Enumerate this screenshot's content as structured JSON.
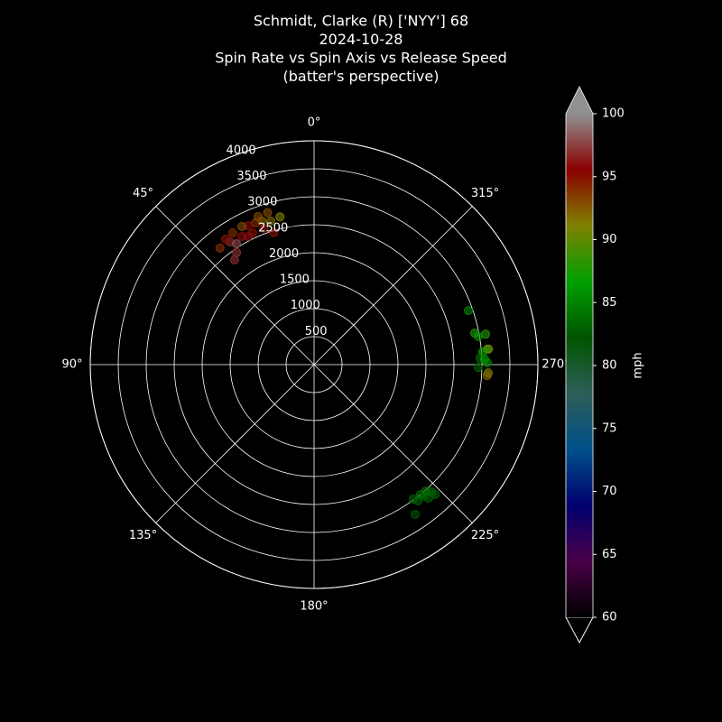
{
  "chart_data": {
    "type": "polar-scatter",
    "title_lines": [
      "Schmidt, Clarke (R) ['NYY'] 68",
      "2024-10-28",
      "Spin Rate vs Spin Axis vs Release Speed",
      "(batter's perspective)"
    ],
    "theta": [
      17,
      13,
      17,
      20,
      22.5,
      25.4,
      27.6,
      29.4,
      31.7,
      34.4,
      35.2,
      38.9,
      32.7,
      37.2,
      34.7,
      25,
      16.8,
      20.3,
      27.2,
      20.7,
      289.3,
      281.1,
      279.7,
      280.1,
      275.1,
      275.1,
      274.3,
      272.2,
      270.6,
      269,
      267.3,
      266.4,
      271.8,
      219.9,
      214,
      222.7,
      220.6,
      217.3,
      219.3,
      223,
      221.5,
      216.4
    ],
    "r": [
      2840,
      2710,
      2465,
      2730,
      2740,
      2745,
      2785,
      2630,
      2767,
      2656,
      2743,
      2677,
      2568,
      2350,
      2434,
      2597,
      2678,
      2597,
      2576,
      2828,
      2923,
      2925,
      2978,
      3113,
      3108,
      3130,
      3025,
      2969,
      3097,
      2935,
      3116,
      3100,
      3049,
      3067,
      3230,
      3093,
      3146,
      3062,
      3002,
      3172,
      3017,
      2987
    ],
    "speed": [
      93,
      91,
      95,
      92,
      94,
      96,
      93,
      96,
      94,
      97,
      95,
      94,
      98,
      97,
      97,
      95,
      92,
      95,
      96,
      93,
      85,
      88,
      86,
      88,
      89,
      90,
      87,
      84,
      85,
      83,
      91,
      92,
      86,
      83,
      82,
      84,
      83,
      83,
      84,
      83,
      84,
      83
    ],
    "rlim": [
      0,
      4000
    ],
    "rticks": [
      500,
      1000,
      1500,
      2000,
      2500,
      3000,
      3500,
      4000
    ],
    "thetaticks": [
      {
        "value": 0,
        "label": "0°"
      },
      {
        "value": 45,
        "label": "45°"
      },
      {
        "value": 90,
        "label": "90°"
      },
      {
        "value": 135,
        "label": "135°"
      },
      {
        "value": 180,
        "label": "180°"
      },
      {
        "value": 225,
        "label": "225°"
      },
      {
        "value": 270,
        "label": "270°"
      },
      {
        "value": 315,
        "label": "315°"
      }
    ],
    "colorbar": {
      "label": "mph",
      "clim": [
        60,
        100
      ],
      "ticks": [
        60,
        65,
        70,
        75,
        80,
        85,
        90,
        95,
        100
      ],
      "colors": [
        "#000000",
        "#4a0048",
        "#00006e",
        "#00508a",
        "#2e5e58",
        "#005400",
        "#00a000",
        "#808000",
        "#8a0000",
        "#909090"
      ]
    }
  }
}
